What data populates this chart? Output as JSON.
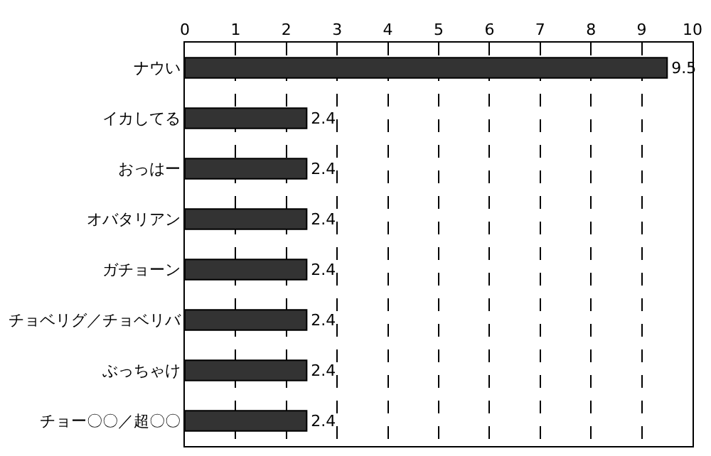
{
  "chart_data": {
    "type": "bar",
    "orientation": "horizontal",
    "categories": [
      "ナウい",
      "イカしてる",
      "おっはー",
      "オバタリアン",
      "ガチョーン",
      "チョベリグ／チョベリバ",
      "ぶっちゃけ",
      "チョー〇〇／超〇〇"
    ],
    "values": [
      9.5,
      2.4,
      2.4,
      2.4,
      2.4,
      2.4,
      2.4,
      2.4
    ],
    "color": "#333333",
    "xlim": [
      0,
      10
    ],
    "xticks": [
      0,
      1,
      2,
      3,
      4,
      5,
      6,
      7,
      8,
      9,
      10
    ],
    "grid": "x",
    "data_labels": true,
    "legend": false
  }
}
